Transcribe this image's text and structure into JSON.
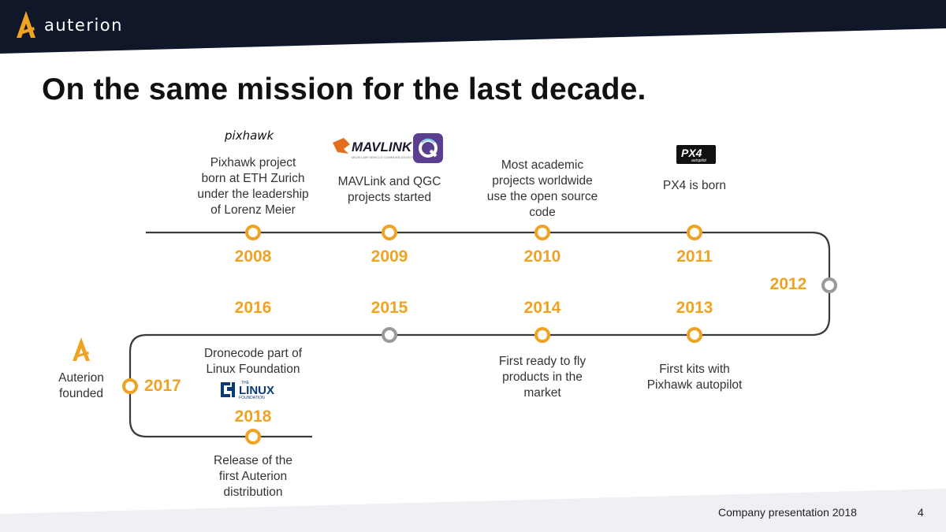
{
  "header": {
    "brand": "auterion"
  },
  "slide": {
    "title": "On the same mission for the last decade."
  },
  "timeline": [
    {
      "year": "2008",
      "text": [
        "Pixhawk project",
        "born at ETH Zurich",
        "under the leadership",
        "of Lorenz Meier"
      ],
      "logo": "pixhawk"
    },
    {
      "year": "2009",
      "text": [
        "MAVLink and QGC",
        "projects started"
      ],
      "logo": "MAVLINK"
    },
    {
      "year": "2010",
      "text": [
        "Most academic",
        "projects worldwide",
        "use the open source",
        "code"
      ]
    },
    {
      "year": "2011",
      "text": [
        "PX4 is born"
      ],
      "logo": "PX4"
    },
    {
      "year": "2012",
      "text": []
    },
    {
      "year": "2013",
      "text": [
        "First kits with",
        "Pixhawk autopilot"
      ]
    },
    {
      "year": "2014",
      "text": [
        "First ready to fly",
        "products in the",
        "market"
      ]
    },
    {
      "year": "2015",
      "text": []
    },
    {
      "year": "2016",
      "text": [
        "Dronecode part of",
        "Linux Foundation"
      ],
      "logo": "LINUX"
    },
    {
      "year": "2017",
      "text": [
        "Auterion",
        "founded"
      ]
    },
    {
      "year": "2018",
      "text": [
        "Release of the",
        "first Auterion",
        "distribution"
      ]
    }
  ],
  "logos": {
    "linux_small": "THE",
    "linux_sub": "FOUNDATION",
    "mavlink_sub": "MICRO AIR VEHICLE COMMUNICATION PROTOCOL",
    "px4_sub": "autopilot"
  },
  "footer": {
    "text": "Company presentation 2018",
    "page": "4"
  },
  "colors": {
    "accent": "#f0a323",
    "inactive": "#9a9a9a",
    "header_bg": "#0f1729",
    "line": "#3a3a3a"
  }
}
